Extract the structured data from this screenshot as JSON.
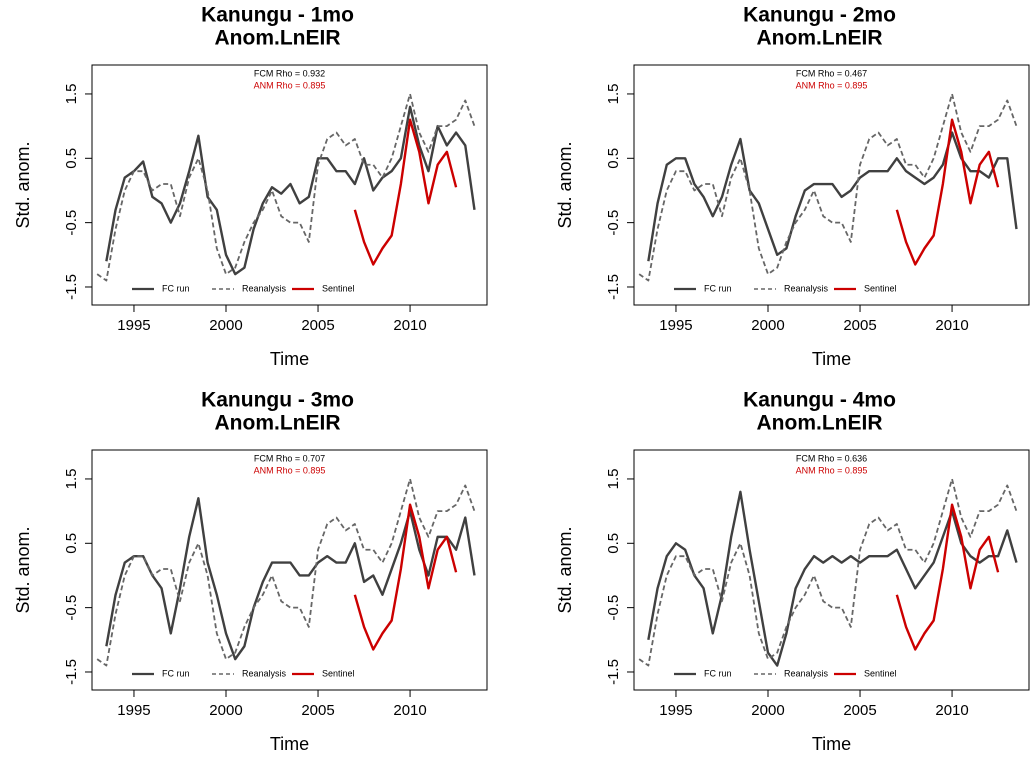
{
  "chart_data": [
    {
      "type": "line",
      "title": "Kanungu - 1mo",
      "subtitle": "Anom.LnEIR",
      "x_label": "Time",
      "y_label": "Std. anom.",
      "annotations": [
        {
          "text": "FCM Rho = 0.932",
          "color": "#000000"
        },
        {
          "text": "ANM Rho = 0.895",
          "color": "#cc0000"
        }
      ],
      "x": [
        1993,
        1993.5,
        1994,
        1994.5,
        1995,
        1995.5,
        1996,
        1996.5,
        1997,
        1997.5,
        1998,
        1998.5,
        1999,
        1999.5,
        2000,
        2000.5,
        2001,
        2001.5,
        2002,
        2002.5,
        2003,
        2003.5,
        2004,
        2004.5,
        2005,
        2005.5,
        2006,
        2006.5,
        2007,
        2007.5,
        2008,
        2008.5,
        2009,
        2009.5,
        2010,
        2010.5,
        2011,
        2011.5,
        2012,
        2012.5,
        2013,
        2013.5
      ],
      "series": [
        {
          "name": "FC run",
          "color": "#404040",
          "linestyle": "solid",
          "values": [
            null,
            -1.1,
            -0.3,
            0.2,
            0.3,
            0.45,
            -0.1,
            -0.2,
            -0.5,
            -0.2,
            0.3,
            0.85,
            -0.1,
            -0.3,
            -1.0,
            -1.3,
            -1.2,
            -0.6,
            -0.2,
            0.05,
            -0.05,
            0.1,
            -0.2,
            -0.1,
            0.5,
            0.5,
            0.3,
            0.3,
            0.1,
            0.5,
            0.0,
            0.2,
            0.3,
            0.5,
            1.3,
            0.7,
            0.3,
            1.0,
            0.7,
            0.9,
            0.7,
            -0.3
          ]
        },
        {
          "name": "Reanalysis",
          "color": "#666666",
          "linestyle": "dashed",
          "values": [
            -1.3,
            -1.4,
            -0.6,
            0.0,
            0.3,
            0.3,
            0.0,
            0.1,
            0.1,
            -0.4,
            0.2,
            0.5,
            0.0,
            -0.9,
            -1.3,
            -1.2,
            -0.8,
            -0.5,
            -0.3,
            0.0,
            -0.4,
            -0.5,
            -0.5,
            -0.8,
            0.4,
            0.8,
            0.9,
            0.7,
            0.8,
            0.4,
            0.4,
            0.2,
            0.5,
            1.0,
            1.5,
            0.9,
            0.6,
            1.0,
            1.0,
            1.1,
            1.4,
            1.0
          ]
        },
        {
          "name": "Sentinel",
          "color": "#cc0000",
          "linestyle": "solid",
          "values": [
            null,
            null,
            null,
            null,
            null,
            null,
            null,
            null,
            null,
            null,
            null,
            null,
            null,
            null,
            null,
            null,
            null,
            null,
            null,
            null,
            null,
            null,
            null,
            null,
            null,
            null,
            null,
            null,
            -0.3,
            -0.8,
            -1.15,
            -0.9,
            -0.7,
            0.1,
            1.1,
            0.6,
            -0.2,
            0.4,
            0.6,
            0.05,
            null,
            null
          ]
        }
      ],
      "xlim": [
        1992.72,
        2014.18
      ],
      "ylim": [
        -1.78,
        1.95
      ],
      "xticks": [
        1995,
        2000,
        2005,
        2010
      ],
      "yticks": [
        1.5,
        0.5,
        -0.5,
        -1.5
      ],
      "legend": "bottom"
    },
    {
      "type": "line",
      "title": "Kanungu - 2mo",
      "subtitle": "Anom.LnEIR",
      "x_label": "Time",
      "y_label": "Std. anom.",
      "annotations": [
        {
          "text": "FCM Rho = 0.467",
          "color": "#000000"
        },
        {
          "text": "ANM Rho = 0.895",
          "color": "#cc0000"
        }
      ],
      "x": [
        1993,
        1993.5,
        1994,
        1994.5,
        1995,
        1995.5,
        1996,
        1996.5,
        1997,
        1997.5,
        1998,
        1998.5,
        1999,
        1999.5,
        2000,
        2000.5,
        2001,
        2001.5,
        2002,
        2002.5,
        2003,
        2003.5,
        2004,
        2004.5,
        2005,
        2005.5,
        2006,
        2006.5,
        2007,
        2007.5,
        2008,
        2008.5,
        2009,
        2009.5,
        2010,
        2010.5,
        2011,
        2011.5,
        2012,
        2012.5,
        2013,
        2013.5
      ],
      "series": [
        {
          "name": "FC run",
          "color": "#404040",
          "linestyle": "solid",
          "values": [
            null,
            -1.1,
            -0.2,
            0.4,
            0.5,
            0.5,
            0.1,
            -0.1,
            -0.4,
            -0.1,
            0.4,
            0.8,
            0.0,
            -0.2,
            -0.6,
            -1.0,
            -0.9,
            -0.4,
            0.0,
            0.1,
            0.1,
            0.1,
            -0.1,
            0.0,
            0.2,
            0.3,
            0.3,
            0.3,
            0.5,
            0.3,
            0.2,
            0.1,
            0.2,
            0.4,
            0.9,
            0.5,
            0.3,
            0.3,
            0.2,
            0.5,
            0.5,
            -0.6
          ]
        },
        {
          "name": "Reanalysis",
          "color": "#666666",
          "linestyle": "dashed",
          "values": [
            -1.3,
            -1.4,
            -0.6,
            0.0,
            0.3,
            0.3,
            0.0,
            0.1,
            0.1,
            -0.4,
            0.2,
            0.5,
            0.0,
            -0.9,
            -1.3,
            -1.2,
            -0.8,
            -0.5,
            -0.3,
            0.0,
            -0.4,
            -0.5,
            -0.5,
            -0.8,
            0.4,
            0.8,
            0.9,
            0.7,
            0.8,
            0.4,
            0.4,
            0.2,
            0.5,
            1.0,
            1.5,
            0.9,
            0.6,
            1.0,
            1.0,
            1.1,
            1.4,
            1.0
          ]
        },
        {
          "name": "Sentinel",
          "color": "#cc0000",
          "linestyle": "solid",
          "values": [
            null,
            null,
            null,
            null,
            null,
            null,
            null,
            null,
            null,
            null,
            null,
            null,
            null,
            null,
            null,
            null,
            null,
            null,
            null,
            null,
            null,
            null,
            null,
            null,
            null,
            null,
            null,
            null,
            -0.3,
            -0.8,
            -1.15,
            -0.9,
            -0.7,
            0.1,
            1.1,
            0.6,
            -0.2,
            0.4,
            0.6,
            0.05,
            null,
            null
          ]
        }
      ],
      "xlim": [
        1992.72,
        2014.18
      ],
      "ylim": [
        -1.78,
        1.95
      ],
      "xticks": [
        1995,
        2000,
        2005,
        2010
      ],
      "yticks": [
        1.5,
        0.5,
        -0.5,
        -1.5
      ],
      "legend": "bottom"
    },
    {
      "type": "line",
      "title": "Kanungu - 3mo",
      "subtitle": "Anom.LnEIR",
      "x_label": "Time",
      "y_label": "Std. anom.",
      "annotations": [
        {
          "text": "FCM Rho = 0.707",
          "color": "#000000"
        },
        {
          "text": "ANM Rho = 0.895",
          "color": "#cc0000"
        }
      ],
      "x": [
        1993,
        1993.5,
        1994,
        1994.5,
        1995,
        1995.5,
        1996,
        1996.5,
        1997,
        1997.5,
        1998,
        1998.5,
        1999,
        1999.5,
        2000,
        2000.5,
        2001,
        2001.5,
        2002,
        2002.5,
        2003,
        2003.5,
        2004,
        2004.5,
        2005,
        2005.5,
        2006,
        2006.5,
        2007,
        2007.5,
        2008,
        2008.5,
        2009,
        2009.5,
        2010,
        2010.5,
        2011,
        2011.5,
        2012,
        2012.5,
        2013,
        2013.5
      ],
      "series": [
        {
          "name": "FC run",
          "color": "#404040",
          "linestyle": "solid",
          "values": [
            null,
            -1.1,
            -0.3,
            0.2,
            0.3,
            0.3,
            0.0,
            -0.2,
            -0.9,
            -0.2,
            0.6,
            1.2,
            0.2,
            -0.3,
            -0.9,
            -1.3,
            -1.1,
            -0.5,
            -0.1,
            0.2,
            0.2,
            0.2,
            0.0,
            0.0,
            0.2,
            0.3,
            0.2,
            0.2,
            0.5,
            -0.1,
            0.0,
            -0.3,
            0.1,
            0.5,
            1.0,
            0.4,
            0.0,
            0.6,
            0.6,
            0.4,
            0.9,
            0.0
          ]
        },
        {
          "name": "Reanalysis",
          "color": "#666666",
          "linestyle": "dashed",
          "values": [
            -1.3,
            -1.4,
            -0.6,
            0.0,
            0.3,
            0.3,
            0.0,
            0.1,
            0.1,
            -0.4,
            0.2,
            0.5,
            0.0,
            -0.9,
            -1.3,
            -1.2,
            -0.8,
            -0.5,
            -0.3,
            0.0,
            -0.4,
            -0.5,
            -0.5,
            -0.8,
            0.4,
            0.8,
            0.9,
            0.7,
            0.8,
            0.4,
            0.4,
            0.2,
            0.5,
            1.0,
            1.5,
            0.9,
            0.6,
            1.0,
            1.0,
            1.1,
            1.4,
            1.0
          ]
        },
        {
          "name": "Sentinel",
          "color": "#cc0000",
          "linestyle": "solid",
          "values": [
            null,
            null,
            null,
            null,
            null,
            null,
            null,
            null,
            null,
            null,
            null,
            null,
            null,
            null,
            null,
            null,
            null,
            null,
            null,
            null,
            null,
            null,
            null,
            null,
            null,
            null,
            null,
            null,
            -0.3,
            -0.8,
            -1.15,
            -0.9,
            -0.7,
            0.1,
            1.1,
            0.6,
            -0.2,
            0.4,
            0.6,
            0.05,
            null,
            null
          ]
        }
      ],
      "xlim": [
        1992.72,
        2014.18
      ],
      "ylim": [
        -1.78,
        1.95
      ],
      "xticks": [
        1995,
        2000,
        2005,
        2010
      ],
      "yticks": [
        1.5,
        0.5,
        -0.5,
        -1.5
      ],
      "legend": "bottom"
    },
    {
      "type": "line",
      "title": "Kanungu - 4mo",
      "subtitle": "Anom.LnEIR",
      "x_label": "Time",
      "y_label": "Std. anom.",
      "annotations": [
        {
          "text": "FCM Rho = 0.636",
          "color": "#000000"
        },
        {
          "text": "ANM Rho = 0.895",
          "color": "#cc0000"
        }
      ],
      "x": [
        1993,
        1993.5,
        1994,
        1994.5,
        1995,
        1995.5,
        1996,
        1996.5,
        1997,
        1997.5,
        1998,
        1998.5,
        1999,
        1999.5,
        2000,
        2000.5,
        2001,
        2001.5,
        2002,
        2002.5,
        2003,
        2003.5,
        2004,
        2004.5,
        2005,
        2005.5,
        2006,
        2006.5,
        2007,
        2007.5,
        2008,
        2008.5,
        2009,
        2009.5,
        2010,
        2010.5,
        2011,
        2011.5,
        2012,
        2012.5,
        2013,
        2013.5
      ],
      "series": [
        {
          "name": "FC run",
          "color": "#404040",
          "linestyle": "solid",
          "values": [
            null,
            -1.0,
            -0.2,
            0.3,
            0.5,
            0.4,
            0.0,
            -0.2,
            -0.9,
            -0.3,
            0.6,
            1.3,
            0.4,
            -0.4,
            -1.2,
            -1.4,
            -0.9,
            -0.2,
            0.1,
            0.3,
            0.2,
            0.3,
            0.2,
            0.3,
            0.2,
            0.3,
            0.3,
            0.3,
            0.4,
            0.1,
            -0.2,
            0.0,
            0.2,
            0.6,
            1.0,
            0.5,
            0.3,
            0.2,
            0.3,
            0.3,
            0.7,
            0.2
          ]
        },
        {
          "name": "Reanalysis",
          "color": "#666666",
          "linestyle": "dashed",
          "values": [
            -1.3,
            -1.4,
            -0.6,
            0.0,
            0.3,
            0.3,
            0.0,
            0.1,
            0.1,
            -0.4,
            0.2,
            0.5,
            0.0,
            -0.9,
            -1.3,
            -1.2,
            -0.8,
            -0.5,
            -0.3,
            0.0,
            -0.4,
            -0.5,
            -0.5,
            -0.8,
            0.4,
            0.8,
            0.9,
            0.7,
            0.8,
            0.4,
            0.4,
            0.2,
            0.5,
            1.0,
            1.5,
            0.9,
            0.6,
            1.0,
            1.0,
            1.1,
            1.4,
            1.0
          ]
        },
        {
          "name": "Sentinel",
          "color": "#cc0000",
          "linestyle": "solid",
          "values": [
            null,
            null,
            null,
            null,
            null,
            null,
            null,
            null,
            null,
            null,
            null,
            null,
            null,
            null,
            null,
            null,
            null,
            null,
            null,
            null,
            null,
            null,
            null,
            null,
            null,
            null,
            null,
            null,
            -0.3,
            -0.8,
            -1.15,
            -0.9,
            -0.7,
            0.1,
            1.1,
            0.6,
            -0.2,
            0.4,
            0.6,
            0.05,
            null,
            null
          ]
        }
      ],
      "xlim": [
        1992.72,
        2014.18
      ],
      "ylim": [
        -1.78,
        1.95
      ],
      "xticks": [
        1995,
        2000,
        2005,
        2010
      ],
      "yticks": [
        1.5,
        0.5,
        -0.5,
        -1.5
      ],
      "legend": "bottom"
    }
  ]
}
